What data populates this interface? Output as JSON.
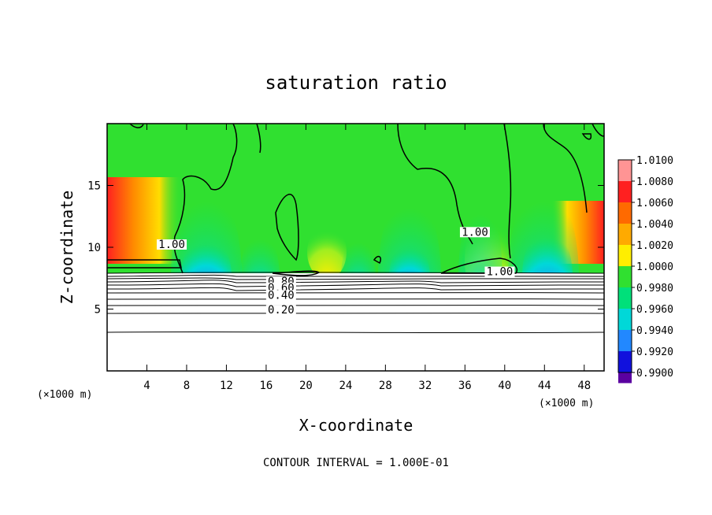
{
  "chart_data": {
    "type": "heatmap",
    "title": "saturation ratio",
    "xlabel": "X-coordinate",
    "ylabel": "Z-coordinate",
    "x_unit": "(×1000 m)",
    "footer": "CONTOUR INTERVAL = 1.000E-01",
    "xlim": [
      0,
      50
    ],
    "ylim": [
      0,
      20
    ],
    "x_ticks": [
      4,
      8,
      12,
      16,
      20,
      24,
      28,
      32,
      36,
      40,
      44,
      48
    ],
    "y_ticks": [
      5,
      10,
      15
    ],
    "colorbar": {
      "levels": [
        "1.0100",
        "1.0080",
        "1.0060",
        "1.0040",
        "1.0020",
        "1.0000",
        "0.9980",
        "0.9960",
        "0.9940",
        "0.9920",
        "0.9900"
      ],
      "colors": [
        "#ff9494",
        "#ff2020",
        "#ff6a00",
        "#ffaa00",
        "#ffee00",
        "#30e030",
        "#00e07a",
        "#00d8d8",
        "#2288ff",
        "#1111dd",
        "#5a00a0"
      ]
    },
    "contour_labels": [
      {
        "text": "1.00",
        "x": 6.5,
        "z": 10.0
      },
      {
        "text": "1.00",
        "x": 37.0,
        "z": 11.0
      },
      {
        "text": "1.00",
        "x": 39.5,
        "z": 7.8
      },
      {
        "text": "0.80",
        "x": 17.5,
        "z": 7.0
      },
      {
        "text": "0.60",
        "x": 17.5,
        "z": 6.5
      },
      {
        "text": "0.40",
        "x": 17.5,
        "z": 5.9
      },
      {
        "text": "0.20",
        "x": 17.5,
        "z": 4.7
      }
    ]
  }
}
